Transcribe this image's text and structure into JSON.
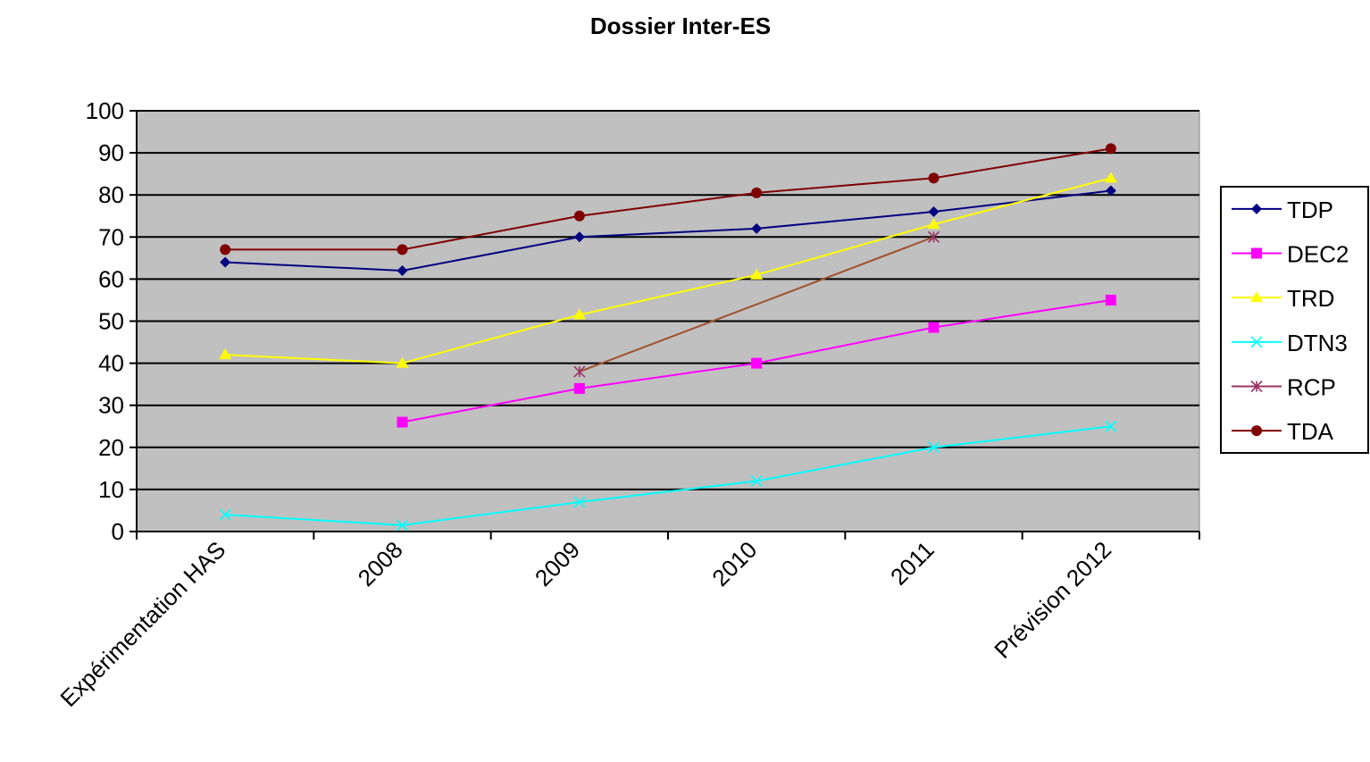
{
  "chart_data": {
    "type": "line",
    "title": "Dossier Inter-ES",
    "xlabel": "",
    "ylabel": "",
    "ylim": [
      0,
      100
    ],
    "ytick_step": 10,
    "grid": true,
    "legend_position": "right",
    "plot_background": "#c0c0c0",
    "categories": [
      "Expérimentation HAS",
      "2008",
      "2009",
      "2010",
      "2011",
      "Prévision 2012"
    ],
    "series": [
      {
        "name": "TDP",
        "color": "#000080",
        "marker": "diamond",
        "values": [
          64,
          62,
          70,
          72,
          76,
          81
        ]
      },
      {
        "name": "DEC2",
        "color": "#ff00ff",
        "marker": "square",
        "values": [
          null,
          26,
          34,
          40,
          48.5,
          55
        ]
      },
      {
        "name": "TRD",
        "color": "#ffff00",
        "marker": "triangle",
        "values": [
          42,
          40,
          51.5,
          61,
          73,
          84
        ]
      },
      {
        "name": "DTN3",
        "color": "#00ffff",
        "marker": "x",
        "values": [
          4,
          1.5,
          7,
          12,
          20,
          25
        ]
      },
      {
        "name": "RCP",
        "color": "#993366",
        "marker": "star",
        "values": [
          null,
          null,
          38,
          null,
          70,
          null
        ]
      },
      {
        "name": "TDA",
        "color": "#800000",
        "marker": "circle",
        "values": [
          67,
          67,
          75,
          80.5,
          84,
          91
        ]
      }
    ],
    "connectors": [
      {
        "series": "RCP",
        "color": "#a0522d",
        "from_index": 2,
        "to_index": 4
      }
    ]
  }
}
